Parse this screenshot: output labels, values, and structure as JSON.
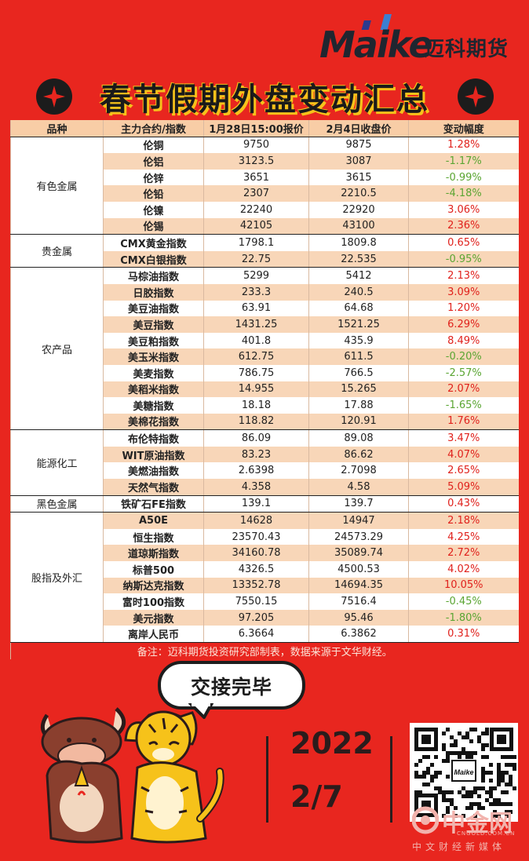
{
  "brand": {
    "word": "Maike",
    "cn": "迈科期货"
  },
  "title": "春节假期外盘变动汇总",
  "headers": [
    "品种",
    "主力合约/指数",
    "1月28日15:00报价",
    "2月4日收盘价",
    "变动幅度"
  ],
  "groups": [
    {
      "category": "有色金属",
      "rows": [
        {
          "name": "伦铜",
          "p1": "9750",
          "p2": "9875",
          "chg": "1.28%",
          "dir": "up"
        },
        {
          "name": "伦铝",
          "p1": "3123.5",
          "p2": "3087",
          "chg": "-1.17%",
          "dir": "down"
        },
        {
          "name": "伦锌",
          "p1": "3651",
          "p2": "3615",
          "chg": "-0.99%",
          "dir": "down"
        },
        {
          "name": "伦铅",
          "p1": "2307",
          "p2": "2210.5",
          "chg": "-4.18%",
          "dir": "down"
        },
        {
          "name": "伦镍",
          "p1": "22240",
          "p2": "22920",
          "chg": "3.06%",
          "dir": "up"
        },
        {
          "name": "伦锡",
          "p1": "42105",
          "p2": "43100",
          "chg": "2.36%",
          "dir": "up"
        }
      ]
    },
    {
      "category": "贵金属",
      "rows": [
        {
          "name": "CMX黄金指数",
          "p1": "1798.1",
          "p2": "1809.8",
          "chg": "0.65%",
          "dir": "up"
        },
        {
          "name": "CMX白银指数",
          "p1": "22.75",
          "p2": "22.535",
          "chg": "-0.95%",
          "dir": "down"
        }
      ]
    },
    {
      "category": "农产品",
      "rows": [
        {
          "name": "马棕油指数",
          "p1": "5299",
          "p2": "5412",
          "chg": "2.13%",
          "dir": "up"
        },
        {
          "name": "日胶指数",
          "p1": "233.3",
          "p2": "240.5",
          "chg": "3.09%",
          "dir": "up"
        },
        {
          "name": "美豆油指数",
          "p1": "63.91",
          "p2": "64.68",
          "chg": "1.20%",
          "dir": "up"
        },
        {
          "name": "美豆指数",
          "p1": "1431.25",
          "p2": "1521.25",
          "chg": "6.29%",
          "dir": "up"
        },
        {
          "name": "美豆粕指数",
          "p1": "401.8",
          "p2": "435.9",
          "chg": "8.49%",
          "dir": "up"
        },
        {
          "name": "美玉米指数",
          "p1": "612.75",
          "p2": "611.5",
          "chg": "-0.20%",
          "dir": "down"
        },
        {
          "name": "美麦指数",
          "p1": "786.75",
          "p2": "766.5",
          "chg": "-2.57%",
          "dir": "down"
        },
        {
          "name": "美稻米指数",
          "p1": "14.955",
          "p2": "15.265",
          "chg": "2.07%",
          "dir": "up"
        },
        {
          "name": "美糖指数",
          "p1": "18.18",
          "p2": "17.88",
          "chg": "-1.65%",
          "dir": "down"
        },
        {
          "name": "美棉花指数",
          "p1": "118.82",
          "p2": "120.91",
          "chg": "1.76%",
          "dir": "up"
        }
      ]
    },
    {
      "category": "能源化工",
      "rows": [
        {
          "name": "布伦特指数",
          "p1": "86.09",
          "p2": "89.08",
          "chg": "3.47%",
          "dir": "up"
        },
        {
          "name": "WIT原油指数",
          "p1": "83.23",
          "p2": "86.62",
          "chg": "4.07%",
          "dir": "up"
        },
        {
          "name": "美燃油指数",
          "p1": "2.6398",
          "p2": "2.7098",
          "chg": "2.65%",
          "dir": "up"
        },
        {
          "name": "天然气指数",
          "p1": "4.358",
          "p2": "4.58",
          "chg": "5.09%",
          "dir": "up"
        }
      ]
    },
    {
      "category": "黑色金属",
      "rows": [
        {
          "name": "铁矿石FE指数",
          "p1": "139.1",
          "p2": "139.7",
          "chg": "0.43%",
          "dir": "up"
        }
      ]
    },
    {
      "category": "股指及外汇",
      "rows": [
        {
          "name": "A50E",
          "p1": "14628",
          "p2": "14947",
          "chg": "2.18%",
          "dir": "up"
        },
        {
          "name": "恒生指数",
          "p1": "23570.43",
          "p2": "24573.29",
          "chg": "4.25%",
          "dir": "up"
        },
        {
          "name": "道琼斯指数",
          "p1": "34160.78",
          "p2": "35089.74",
          "chg": "2.72%",
          "dir": "up"
        },
        {
          "name": "标普500",
          "p1": "4326.5",
          "p2": "4500.53",
          "chg": "4.02%",
          "dir": "up"
        },
        {
          "name": "纳斯达克指数",
          "p1": "13352.78",
          "p2": "14694.35",
          "chg": "10.05%",
          "dir": "up"
        },
        {
          "name": "富时100指数",
          "p1": "7550.15",
          "p2": "7516.4",
          "chg": "-0.45%",
          "dir": "down"
        },
        {
          "name": "美元指数",
          "p1": "97.205",
          "p2": "95.46",
          "chg": "-1.80%",
          "dir": "down"
        },
        {
          "name": "离岸人民币",
          "p1": "6.3664",
          "p2": "6.3862",
          "chg": "0.31%",
          "dir": "up"
        }
      ]
    }
  ],
  "note": "备注：迈科期货投资研究部制表，数据来源于文华财经。",
  "bubble": "交接完毕",
  "year": "2022",
  "date": "2/7",
  "watermark": {
    "cn": "中金网",
    "url": "CNGOLD.COM.CN",
    "sub": "中文财经新媒体"
  },
  "qr_logo": "Maike"
}
